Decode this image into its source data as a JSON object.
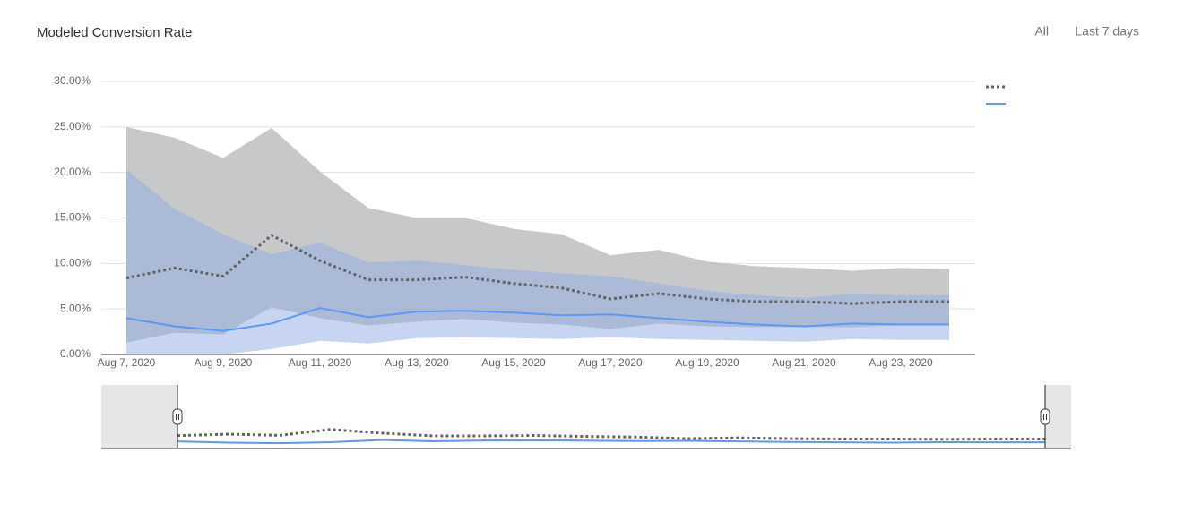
{
  "chart_data": {
    "type": "line",
    "title": "Modeled Conversion Rate",
    "range_buttons": [
      "All",
      "Last 7 days"
    ],
    "x": [
      "Aug 7, 2020",
      null,
      "Aug 9, 2020",
      null,
      "Aug 11, 2020",
      null,
      "Aug 13, 2020",
      null,
      "Aug 15, 2020",
      null,
      "Aug 17, 2020",
      null,
      "Aug 19, 2020",
      null,
      "Aug 21, 2020",
      null,
      "Aug 23, 2020",
      null
    ],
    "series": [
      {
        "color": "#5f6368",
        "style": "dotted",
        "band_color": "#bdbebf",
        "values": [
          8.4,
          9.5,
          8.6,
          13.1,
          10.3,
          8.2,
          8.2,
          8.5,
          7.8,
          7.3,
          6.1,
          6.7,
          6.1,
          5.8,
          5.8,
          5.6,
          5.8,
          5.8
        ],
        "upper": [
          25.0,
          23.8,
          21.6,
          24.9,
          20.1,
          16.1,
          15.0,
          15.0,
          13.8,
          13.2,
          10.9,
          11.5,
          10.2,
          9.7,
          9.5,
          9.2,
          9.5,
          9.4
        ],
        "lower": [
          1.3,
          2.4,
          2.2,
          5.2,
          4.0,
          3.2,
          3.6,
          3.9,
          3.5,
          3.3,
          2.8,
          3.4,
          3.1,
          3.0,
          3.0,
          3.0,
          3.2,
          3.2
        ]
      },
      {
        "color": "#5e97f6",
        "style": "solid",
        "band_color": "#8fabe6",
        "values": [
          4.0,
          3.1,
          2.6,
          3.4,
          5.1,
          4.1,
          4.7,
          4.8,
          4.6,
          4.3,
          4.4,
          4.0,
          3.6,
          3.3,
          3.1,
          3.4,
          3.3,
          3.3
        ],
        "upper": [
          20.3,
          16.0,
          13.2,
          11.0,
          12.3,
          10.1,
          10.3,
          9.8,
          9.3,
          8.9,
          8.6,
          7.8,
          7.0,
          6.5,
          6.2,
          6.7,
          6.5,
          6.5
        ],
        "lower": [
          0,
          0,
          0,
          0.6,
          1.5,
          1.2,
          1.8,
          1.9,
          1.8,
          1.7,
          1.9,
          1.7,
          1.6,
          1.5,
          1.4,
          1.7,
          1.6,
          1.6
        ]
      }
    ],
    "ylim": [
      0,
      30
    ],
    "yticks": [
      {
        "value": 0,
        "label": "0.00%"
      },
      {
        "value": 5,
        "label": "5.00%"
      },
      {
        "value": 10,
        "label": "10.00%"
      },
      {
        "value": 15,
        "label": "15.00%"
      },
      {
        "value": 20,
        "label": "20.00%"
      },
      {
        "value": 25,
        "label": "25.00%"
      },
      {
        "value": 30,
        "label": "30.00%"
      }
    ],
    "grid": true
  }
}
